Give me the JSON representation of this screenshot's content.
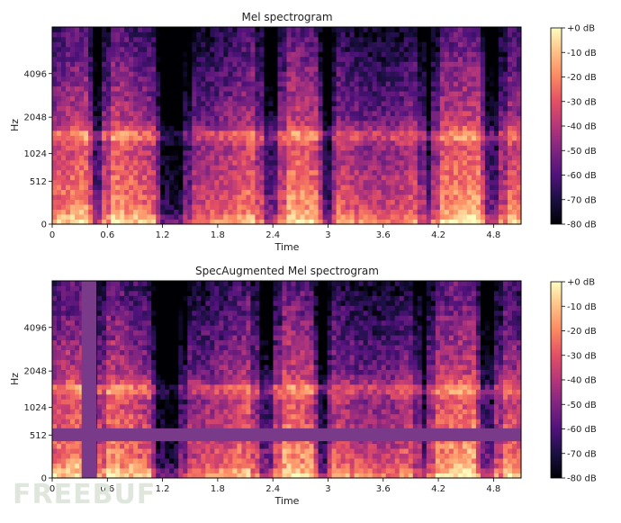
{
  "chart_data": [
    {
      "type": "heatmap",
      "title": "Mel spectrogram",
      "xlabel": "Time",
      "ylabel": "Hz",
      "x_ticks": [
        "0",
        "0.6",
        "1.2",
        "1.8",
        "2.4",
        "3",
        "3.6",
        "4.2",
        "4.8"
      ],
      "x_tick_values": [
        0,
        0.6,
        1.2,
        1.8,
        2.4,
        3.0,
        3.6,
        4.2,
        4.8
      ],
      "xlim": [
        0,
        5.1
      ],
      "y_ticks": [
        "0",
        "512",
        "1024",
        "2048",
        "4096"
      ],
      "y_scale": "mel",
      "colorbar": {
        "label_ticks": [
          "+0 dB",
          "-10 dB",
          "-20 dB",
          "-30 dB",
          "-40 dB",
          "-50 dB",
          "-60 dB",
          "-70 dB",
          "-80 dB"
        ],
        "range_db": [
          -80,
          0
        ],
        "colormap": "magma"
      },
      "masks": []
    },
    {
      "type": "heatmap",
      "title": "SpecAugmented Mel spectrogram",
      "xlabel": "Time",
      "ylabel": "Hz",
      "x_ticks": [
        "0",
        "0.6",
        "1.2",
        "1.8",
        "2.4",
        "3",
        "3.6",
        "4.2",
        "4.8"
      ],
      "x_tick_values": [
        0,
        0.6,
        1.2,
        1.8,
        2.4,
        3.0,
        3.6,
        4.2,
        4.8
      ],
      "xlim": [
        0,
        5.1
      ],
      "y_ticks": [
        "0",
        "512",
        "1024",
        "2048",
        "4096"
      ],
      "y_scale": "mel",
      "colorbar": {
        "label_ticks": [
          "+0 dB",
          "-10 dB",
          "-20 dB",
          "-30 dB",
          "-40 dB",
          "-50 dB",
          "-60 dB",
          "-70 dB",
          "-80 dB"
        ],
        "range_db": [
          -80,
          0
        ],
        "colormap": "magma"
      },
      "masks": [
        {
          "kind": "time",
          "from_s": 0.32,
          "to_s": 0.48
        },
        {
          "kind": "frequency",
          "from_hz": 420,
          "to_hz": 620
        }
      ]
    }
  ],
  "watermark": "FREEBUF",
  "colors": {
    "magma_low": "#000004",
    "magma_mid": "#b63679",
    "magma_high": "#fcfdbf",
    "mask": "#7a3a8a"
  }
}
